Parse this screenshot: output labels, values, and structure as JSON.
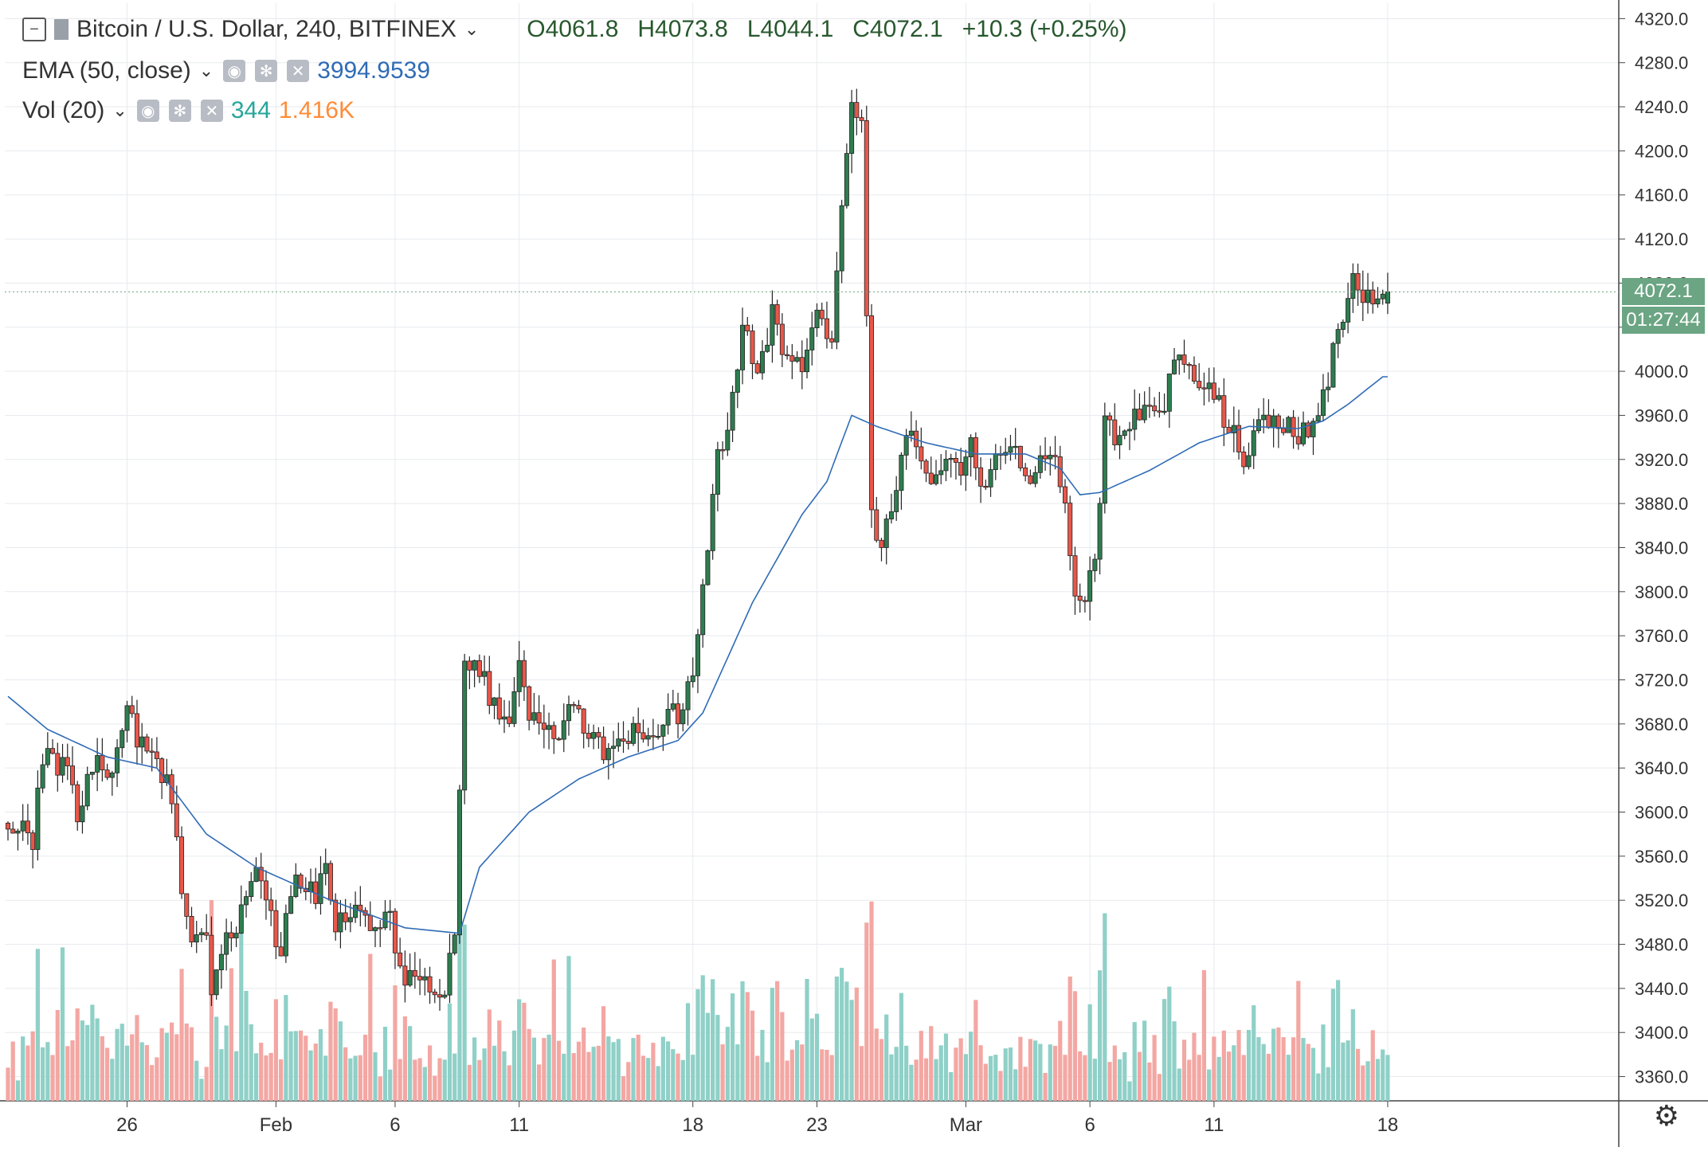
{
  "header": {
    "symbol": "Bitcoin / U.S. Dollar, 240, BITFINEX",
    "open": "O4061.8",
    "high": "H4073.8",
    "low": "L4044.1",
    "close": "C4072.1",
    "change": "+10.3 (+0.25%)"
  },
  "ema": {
    "label": "EMA (50, close)",
    "value": "3994.9539",
    "color": "#2f6bb5"
  },
  "vol": {
    "label": "Vol (20)",
    "value": "344",
    "ma_value": "1.416K",
    "value_color": "#26a69a",
    "ma_color": "#ff8c3a"
  },
  "price_tag": {
    "price": "4072.1",
    "countdown": "01:27:44"
  },
  "icons": {
    "collapse": "collapse-square-icon",
    "settings": "gear-icon",
    "eye": "eye-icon",
    "cog": "cog-icon",
    "close": "close-icon"
  },
  "colors": {
    "up": "#2e7d4f",
    "down": "#e8574a",
    "vol_up": "#8fd0c7",
    "vol_down": "#f3a7a3",
    "ema": "#2f6bb5",
    "grid": "#e8eaee"
  },
  "chart_data": {
    "type": "candlestick",
    "title": "Bitcoin / U.S. Dollar, 240, BITFINEX",
    "y_ticks": [
      3360,
      3400,
      3440,
      3480,
      3520,
      3560,
      3600,
      3640,
      3680,
      3720,
      3760,
      3800,
      3840,
      3880,
      3920,
      3960,
      4000,
      4040,
      4080,
      4120,
      4160,
      4200,
      4240,
      4280,
      4320
    ],
    "ylim": [
      3338,
      4334
    ],
    "x_ticks": [
      {
        "label": "26",
        "idx": 24
      },
      {
        "label": "Feb",
        "idx": 54
      },
      {
        "label": "6",
        "idx": 78
      },
      {
        "label": "11",
        "idx": 103
      },
      {
        "label": "18",
        "idx": 138
      },
      {
        "label": "23",
        "idx": 163
      },
      {
        "label": "Mar",
        "idx": 193
      },
      {
        "label": "6",
        "idx": 218
      },
      {
        "label": "11",
        "idx": 243
      },
      {
        "label": "18",
        "idx": 278
      }
    ],
    "n_bars": 285,
    "price_anchors": [
      [
        0,
        3590
      ],
      [
        5,
        3575
      ],
      [
        7,
        3650
      ],
      [
        12,
        3640
      ],
      [
        14,
        3600
      ],
      [
        18,
        3655
      ],
      [
        21,
        3625
      ],
      [
        24,
        3705
      ],
      [
        26,
        3665
      ],
      [
        30,
        3650
      ],
      [
        33,
        3610
      ],
      [
        35,
        3530
      ],
      [
        37,
        3485
      ],
      [
        40,
        3490
      ],
      [
        41,
        3425
      ],
      [
        43,
        3470
      ],
      [
        47,
        3510
      ],
      [
        50,
        3545
      ],
      [
        53,
        3500
      ],
      [
        55,
        3475
      ],
      [
        58,
        3545
      ],
      [
        62,
        3520
      ],
      [
        64,
        3550
      ],
      [
        66,
        3500
      ],
      [
        70,
        3510
      ],
      [
        73,
        3492
      ],
      [
        77,
        3510
      ],
      [
        79,
        3450
      ],
      [
        84,
        3445
      ],
      [
        86,
        3440
      ],
      [
        88,
        3440
      ],
      [
        90,
        3490
      ],
      [
        92,
        3735
      ],
      [
        95,
        3730
      ],
      [
        98,
        3695
      ],
      [
        101,
        3690
      ],
      [
        103,
        3740
      ],
      [
        105,
        3690
      ],
      [
        108,
        3680
      ],
      [
        111,
        3665
      ],
      [
        114,
        3705
      ],
      [
        117,
        3670
      ],
      [
        120,
        3655
      ],
      [
        123,
        3665
      ],
      [
        126,
        3670
      ],
      [
        130,
        3660
      ],
      [
        133,
        3700
      ],
      [
        136,
        3685
      ],
      [
        138,
        3730
      ],
      [
        140,
        3800
      ],
      [
        143,
        3920
      ],
      [
        146,
        3970
      ],
      [
        148,
        4050
      ],
      [
        151,
        4000
      ],
      [
        154,
        4050
      ],
      [
        157,
        4010
      ],
      [
        160,
        4000
      ],
      [
        163,
        4050
      ],
      [
        166,
        4030
      ],
      [
        168,
        4150
      ],
      [
        170,
        4250
      ],
      [
        172,
        4225
      ],
      [
        174,
        3880
      ],
      [
        176,
        3835
      ],
      [
        179,
        3900
      ],
      [
        181,
        3950
      ],
      [
        184,
        3910
      ],
      [
        187,
        3900
      ],
      [
        190,
        3920
      ],
      [
        192,
        3900
      ],
      [
        194,
        3945
      ],
      [
        196,
        3895
      ],
      [
        199,
        3920
      ],
      [
        202,
        3935
      ],
      [
        205,
        3900
      ],
      [
        208,
        3915
      ],
      [
        211,
        3918
      ],
      [
        213,
        3880
      ],
      [
        215,
        3800
      ],
      [
        217,
        3795
      ],
      [
        219,
        3825
      ],
      [
        221,
        3950
      ],
      [
        224,
        3940
      ],
      [
        227,
        3965
      ],
      [
        230,
        3960
      ],
      [
        233,
        3970
      ],
      [
        235,
        4015
      ],
      [
        238,
        4000
      ],
      [
        241,
        3990
      ],
      [
        243,
        3980
      ],
      [
        245,
        3955
      ],
      [
        247,
        3940
      ],
      [
        249,
        3918
      ],
      [
        252,
        3960
      ],
      [
        255,
        3955
      ],
      [
        257,
        3950
      ],
      [
        260,
        3945
      ],
      [
        263,
        3945
      ],
      [
        265,
        3975
      ],
      [
        267,
        4015
      ],
      [
        269,
        4050
      ],
      [
        271,
        4095
      ],
      [
        273,
        4070
      ],
      [
        275,
        4060
      ],
      [
        277,
        4072
      ]
    ],
    "ema_anchors": [
      [
        0,
        3705
      ],
      [
        8,
        3675
      ],
      [
        20,
        3650
      ],
      [
        30,
        3640
      ],
      [
        40,
        3580
      ],
      [
        50,
        3550
      ],
      [
        65,
        3520
      ],
      [
        80,
        3495
      ],
      [
        91,
        3490
      ],
      [
        95,
        3550
      ],
      [
        105,
        3600
      ],
      [
        115,
        3630
      ],
      [
        125,
        3650
      ],
      [
        135,
        3665
      ],
      [
        140,
        3690
      ],
      [
        150,
        3790
      ],
      [
        160,
        3870
      ],
      [
        165,
        3900
      ],
      [
        170,
        3960
      ],
      [
        175,
        3950
      ],
      [
        185,
        3935
      ],
      [
        195,
        3925
      ],
      [
        205,
        3925
      ],
      [
        212,
        3912
      ],
      [
        216,
        3888
      ],
      [
        220,
        3890
      ],
      [
        230,
        3910
      ],
      [
        240,
        3935
      ],
      [
        250,
        3950
      ],
      [
        260,
        3948
      ],
      [
        265,
        3955
      ],
      [
        270,
        3970
      ],
      [
        277,
        3995
      ]
    ],
    "volume_max": 6000
  }
}
